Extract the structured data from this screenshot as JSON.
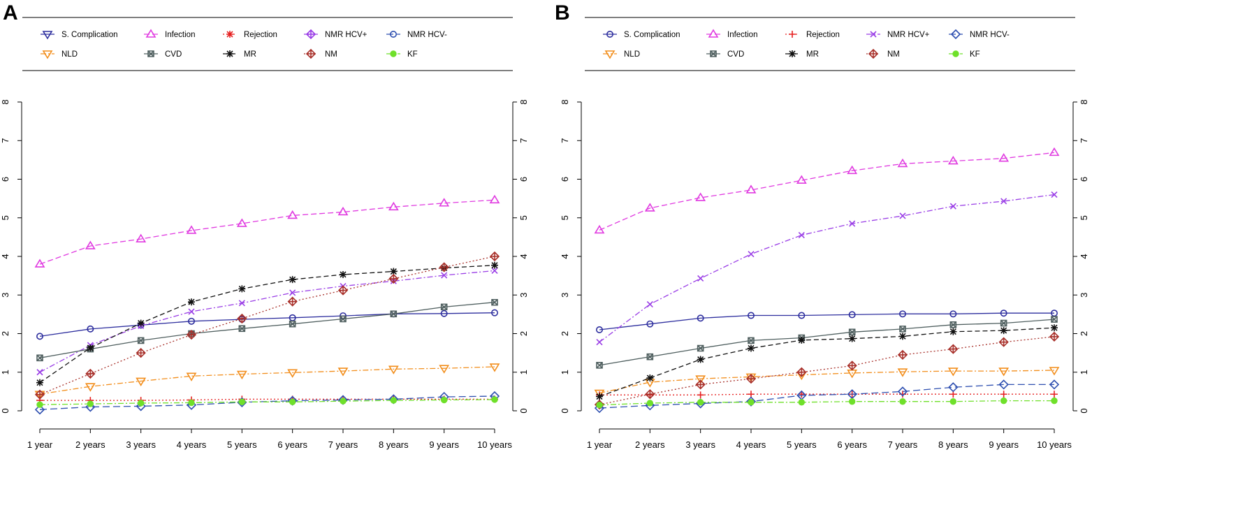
{
  "legend_entries": [
    {
      "name": "S. Complication",
      "color": "#2d2e9e",
      "dash": "",
      "marker": "circle",
      "legend_marker": "triangle-down"
    },
    {
      "name": "Infection",
      "color": "#e03ae0",
      "dash": "8 4",
      "marker": "triangle",
      "legend_marker": "triangle"
    },
    {
      "name": "Rejection",
      "color": "#e62020",
      "dash": "2 3",
      "marker": "plus",
      "legend_marker": "star"
    },
    {
      "name": "NMR HCV+",
      "color": "#9a3ee6",
      "dash": "8 3 2 3",
      "marker": "x",
      "legend_marker": "diamond-plus"
    },
    {
      "name": "NMR HCV-",
      "color": "#2e4fb0",
      "dash": "10 5",
      "marker": "diamond",
      "legend_marker": "circle"
    },
    {
      "name": "NLD",
      "color": "#f28e1c",
      "dash": "8 3 2 3",
      "marker": "triangle-down",
      "legend_marker": "triangle-down"
    },
    {
      "name": "CVD",
      "color": "#4f5f5f",
      "dash": "",
      "marker": "square-x",
      "legend_marker": "square-x"
    },
    {
      "name": "MR",
      "color": "#111111",
      "dash": "7 4",
      "marker": "star",
      "legend_marker": "star"
    },
    {
      "name": "NM",
      "color": "#a8302a",
      "dash": "2 3",
      "marker": "diamond-plus",
      "legend_marker": "diamond-plus"
    },
    {
      "name": "KF",
      "color": "#6fe02a",
      "dash": "8 3 2 3",
      "marker": "circle-filled",
      "legend_marker": "circle-filled"
    }
  ],
  "chart_data": [
    {
      "panel": "A",
      "type": "line",
      "x": [
        "1 year",
        "2 years",
        "3 years",
        "4 years",
        "5 years",
        "6 years",
        "7 years",
        "8 years",
        "9 years",
        "10 years"
      ],
      "ylim": [
        0,
        8
      ],
      "yticks": [
        0,
        1,
        2,
        3,
        4,
        5,
        6,
        7,
        8
      ],
      "grid": false,
      "legend_placement": "top",
      "series": [
        {
          "name": "S. Complication",
          "values": [
            1.93,
            2.12,
            2.22,
            2.32,
            2.37,
            2.41,
            2.46,
            2.51,
            2.52,
            2.54
          ]
        },
        {
          "name": "Infection",
          "values": [
            3.8,
            4.27,
            4.45,
            4.67,
            4.85,
            5.06,
            5.15,
            5.28,
            5.38,
            5.46
          ]
        },
        {
          "name": "Rejection",
          "values": [
            0.27,
            0.27,
            0.27,
            0.28,
            0.3,
            0.3,
            0.3,
            0.3,
            0.3,
            0.3
          ]
        },
        {
          "name": "NMR HCV+",
          "values": [
            1.0,
            1.7,
            2.2,
            2.57,
            2.79,
            3.06,
            3.23,
            3.36,
            3.51,
            3.63
          ]
        },
        {
          "name": "NMR HCV-",
          "values": [
            0.03,
            0.1,
            0.12,
            0.15,
            0.22,
            0.26,
            0.28,
            0.3,
            0.36,
            0.38
          ]
        },
        {
          "name": "NLD",
          "values": [
            0.43,
            0.63,
            0.77,
            0.9,
            0.95,
            0.99,
            1.03,
            1.08,
            1.1,
            1.14
          ]
        },
        {
          "name": "CVD",
          "values": [
            1.37,
            1.6,
            1.82,
            2.0,
            2.13,
            2.25,
            2.38,
            2.51,
            2.69,
            2.81
          ]
        },
        {
          "name": "MR",
          "values": [
            0.73,
            1.63,
            2.27,
            2.82,
            3.16,
            3.4,
            3.53,
            3.61,
            3.7,
            3.77
          ]
        },
        {
          "name": "NM",
          "values": [
            0.42,
            0.96,
            1.5,
            1.97,
            2.39,
            2.83,
            3.12,
            3.42,
            3.72,
            4.0
          ]
        },
        {
          "name": "KF",
          "values": [
            0.16,
            0.18,
            0.2,
            0.21,
            0.23,
            0.23,
            0.25,
            0.27,
            0.28,
            0.29
          ]
        }
      ]
    },
    {
      "panel": "B",
      "type": "line",
      "x": [
        "1 year",
        "2 years",
        "3 years",
        "4 years",
        "5 years",
        "6 years",
        "7 years",
        "8 years",
        "9 years",
        "10 years"
      ],
      "ylim": [
        0,
        8
      ],
      "yticks": [
        0,
        1,
        2,
        3,
        4,
        5,
        6,
        7,
        8
      ],
      "grid": false,
      "legend_placement": "top",
      "series": [
        {
          "name": "S. Complication",
          "values": [
            2.1,
            2.25,
            2.4,
            2.47,
            2.47,
            2.49,
            2.51,
            2.51,
            2.53,
            2.53
          ]
        },
        {
          "name": "Infection",
          "values": [
            4.68,
            5.25,
            5.52,
            5.72,
            5.97,
            6.22,
            6.4,
            6.47,
            6.54,
            6.69
          ]
        },
        {
          "name": "Rejection",
          "values": [
            0.41,
            0.41,
            0.41,
            0.43,
            0.43,
            0.43,
            0.43,
            0.43,
            0.43,
            0.43
          ]
        },
        {
          "name": "NMR HCV+",
          "values": [
            1.78,
            2.76,
            3.43,
            4.06,
            4.55,
            4.85,
            5.05,
            5.3,
            5.43,
            5.6
          ]
        },
        {
          "name": "NMR HCV-",
          "values": [
            0.07,
            0.14,
            0.19,
            0.24,
            0.4,
            0.43,
            0.5,
            0.61,
            0.68,
            0.68
          ]
        },
        {
          "name": "NLD",
          "values": [
            0.46,
            0.74,
            0.83,
            0.88,
            0.93,
            0.98,
            1.01,
            1.03,
            1.03,
            1.05
          ]
        },
        {
          "name": "CVD",
          "values": [
            1.18,
            1.4,
            1.62,
            1.82,
            1.89,
            2.04,
            2.12,
            2.23,
            2.27,
            2.37
          ]
        },
        {
          "name": "MR",
          "values": [
            0.37,
            0.85,
            1.33,
            1.62,
            1.83,
            1.87,
            1.93,
            2.05,
            2.08,
            2.15
          ]
        },
        {
          "name": "NM",
          "values": [
            0.16,
            0.43,
            0.68,
            0.83,
            1.0,
            1.17,
            1.45,
            1.6,
            1.78,
            1.92
          ]
        },
        {
          "name": "KF",
          "values": [
            0.15,
            0.2,
            0.22,
            0.22,
            0.22,
            0.24,
            0.24,
            0.24,
            0.26,
            0.26
          ]
        }
      ]
    }
  ]
}
